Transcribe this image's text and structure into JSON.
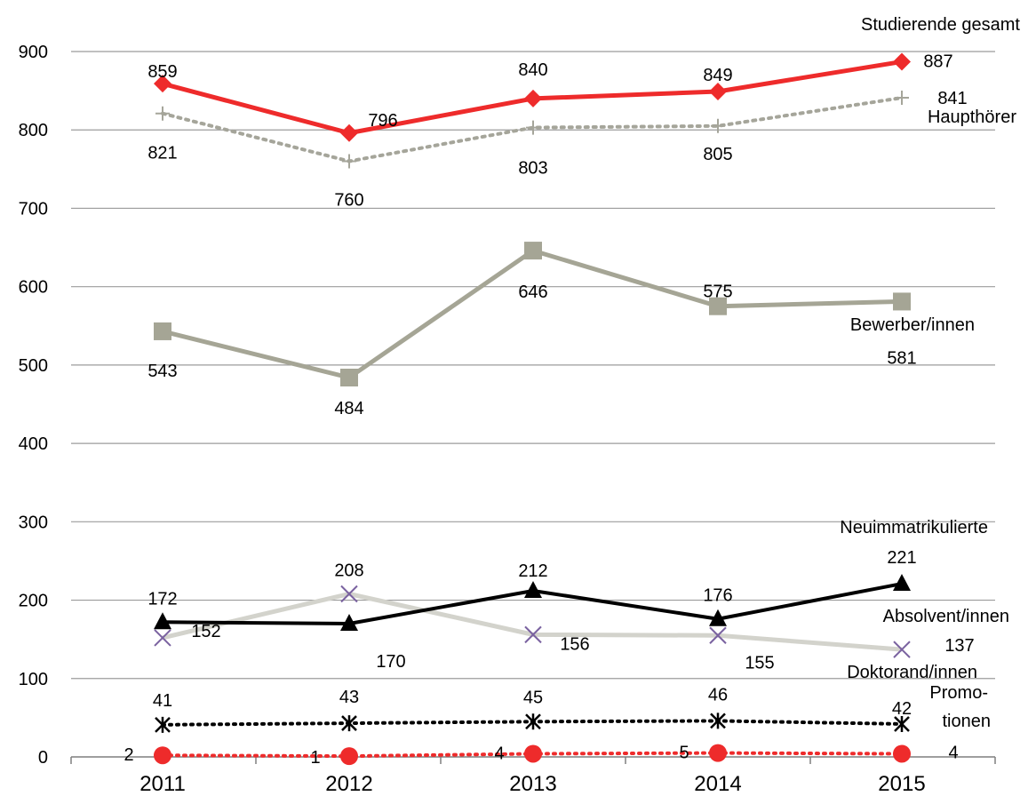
{
  "chart_data": {
    "type": "line",
    "title": "",
    "xlabel": "",
    "ylabel": "",
    "categories": [
      "2011",
      "2012",
      "2013",
      "2014",
      "2015"
    ],
    "ylim": [
      0,
      900
    ],
    "yticks": [
      0,
      100,
      200,
      300,
      400,
      500,
      600,
      700,
      800,
      900
    ],
    "ytick_labels": [
      "0",
      "100",
      "200",
      "300",
      "400",
      "500",
      "600",
      "700",
      "800",
      "900"
    ],
    "grid": true,
    "legend": "series labels placed at the right end of each line",
    "series": [
      {
        "key": "studierende",
        "name": "Studierende gesamt",
        "values": [
          859,
          796,
          840,
          849,
          887
        ],
        "value_labels": [
          "859",
          "796",
          "840",
          "849",
          "887"
        ],
        "color": "#ee2b2b",
        "marker": "diamond",
        "dash": "solid"
      },
      {
        "key": "haupthoerer",
        "name": "Haupthörer",
        "values": [
          821,
          760,
          803,
          805,
          841
        ],
        "value_labels": [
          "821",
          "760",
          "803",
          "805",
          "841"
        ],
        "color": "#a5a59a",
        "marker": "plus",
        "dash": "dotted"
      },
      {
        "key": "bewerber",
        "name": "Bewerber/innen",
        "values": [
          543,
          484,
          646,
          575,
          581
        ],
        "value_labels": [
          "543",
          "484",
          "646",
          "575",
          "581"
        ],
        "color": "#a5a595",
        "marker": "square",
        "dash": "solid"
      },
      {
        "key": "neuimm",
        "name": "Neuimmatrikulierte",
        "values": [
          172,
          170,
          212,
          176,
          221
        ],
        "value_labels": [
          "172",
          "170",
          "212",
          "176",
          "221"
        ],
        "color": "#000000",
        "marker": "triangle",
        "dash": "solid"
      },
      {
        "key": "absolvent",
        "name": "Absolvent/innen",
        "values": [
          152,
          208,
          156,
          155,
          137
        ],
        "value_labels": [
          "152",
          "208",
          "156",
          "155",
          "137"
        ],
        "color": "#d3d3cc",
        "marker": "cross",
        "marker_color": "#7a62a0",
        "dash": "solid"
      },
      {
        "key": "doktorand",
        "name": "Doktorand/innen",
        "values": [
          41,
          43,
          45,
          46,
          42
        ],
        "value_labels": [
          "41",
          "43",
          "45",
          "46",
          "42"
        ],
        "color": "#000000",
        "marker": "asterisk",
        "dash": "dotted"
      },
      {
        "key": "promotionen",
        "name": "Promo- tionen",
        "name_lines": [
          "Promo-",
          "tionen"
        ],
        "values": [
          2,
          1,
          4,
          5,
          4
        ],
        "value_labels": [
          "2",
          "1",
          "4",
          "5",
          "4"
        ],
        "color": "#ee2b2b",
        "marker": "circle",
        "dash": "dotted"
      }
    ]
  }
}
